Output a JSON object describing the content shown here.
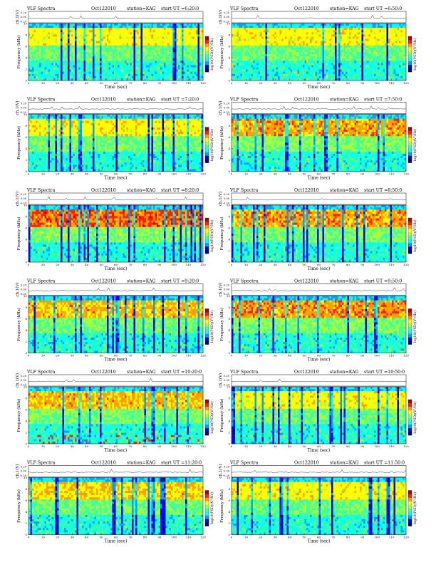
{
  "page": {
    "title": "VLF Spectra panel grid, station KAG, Oct 12 2010"
  },
  "chart_data": {
    "type": "heatmap",
    "common": {
      "title_prefix": "VLF Spectra",
      "date": "Oct122010",
      "station": "station=KAG",
      "start_label": "start  UT",
      "xlabel": "Time  (sec)",
      "ylabel_freq": "Frequency  (kHz)",
      "ylabel_ch": "ch.1(V)",
      "colorbar_label": "log10(PSD)(V²/Hz)",
      "x_range": [
        0,
        120
      ],
      "x_ticks": [
        0,
        10,
        20,
        30,
        40,
        50,
        60,
        70,
        80,
        90,
        100,
        110,
        120
      ],
      "y_range_khz": [
        0,
        10
      ],
      "y_ticks_khz": [
        0,
        2,
        4,
        6,
        8,
        10
      ],
      "ch_ticks": [
        "0.20",
        "0.00",
        "-0.20"
      ],
      "ch_range": [
        -0.2,
        0.2
      ],
      "colormap": [
        "#000080",
        "#0000ff",
        "#00a0ff",
        "#00ffff",
        "#40ffa0",
        "#a0ff40",
        "#ffff00",
        "#ffa000",
        "#ff2000",
        "#b00000"
      ]
    },
    "panels": [
      {
        "start": "=6:20:0",
        "intensity": 0.45,
        "red_band": 0.35,
        "low_red": 0.0
      },
      {
        "start": "=6:50:0",
        "intensity": 0.45,
        "red_band": 0.4,
        "low_red": 0.0
      },
      {
        "start": "=7:20:0",
        "intensity": 0.5,
        "red_band": 0.35,
        "low_red": 0.0
      },
      {
        "start": "=7:50:0",
        "intensity": 0.6,
        "red_band": 0.7,
        "low_red": 0.0
      },
      {
        "start": "=8:20:0",
        "intensity": 0.7,
        "red_band": 0.85,
        "low_red": 0.0
      },
      {
        "start": "=8:50:0",
        "intensity": 0.6,
        "red_band": 0.7,
        "low_red": 0.0
      },
      {
        "start": "=9:20:0",
        "intensity": 0.55,
        "red_band": 0.6,
        "low_red": 0.0
      },
      {
        "start": "=9:50:0",
        "intensity": 0.62,
        "red_band": 0.75,
        "low_red": 0.0
      },
      {
        "start": "=10:20:0",
        "intensity": 0.55,
        "red_band": 0.6,
        "low_red": 0.3
      },
      {
        "start": "=10:50:0",
        "intensity": 0.45,
        "red_band": 0.4,
        "low_red": 0.0
      },
      {
        "start": "=11:20:0",
        "intensity": 0.5,
        "red_band": 0.55,
        "low_red": 0.0
      },
      {
        "start": "=11:50:0",
        "intensity": 0.45,
        "red_band": 0.4,
        "low_red": 0.0
      }
    ]
  }
}
